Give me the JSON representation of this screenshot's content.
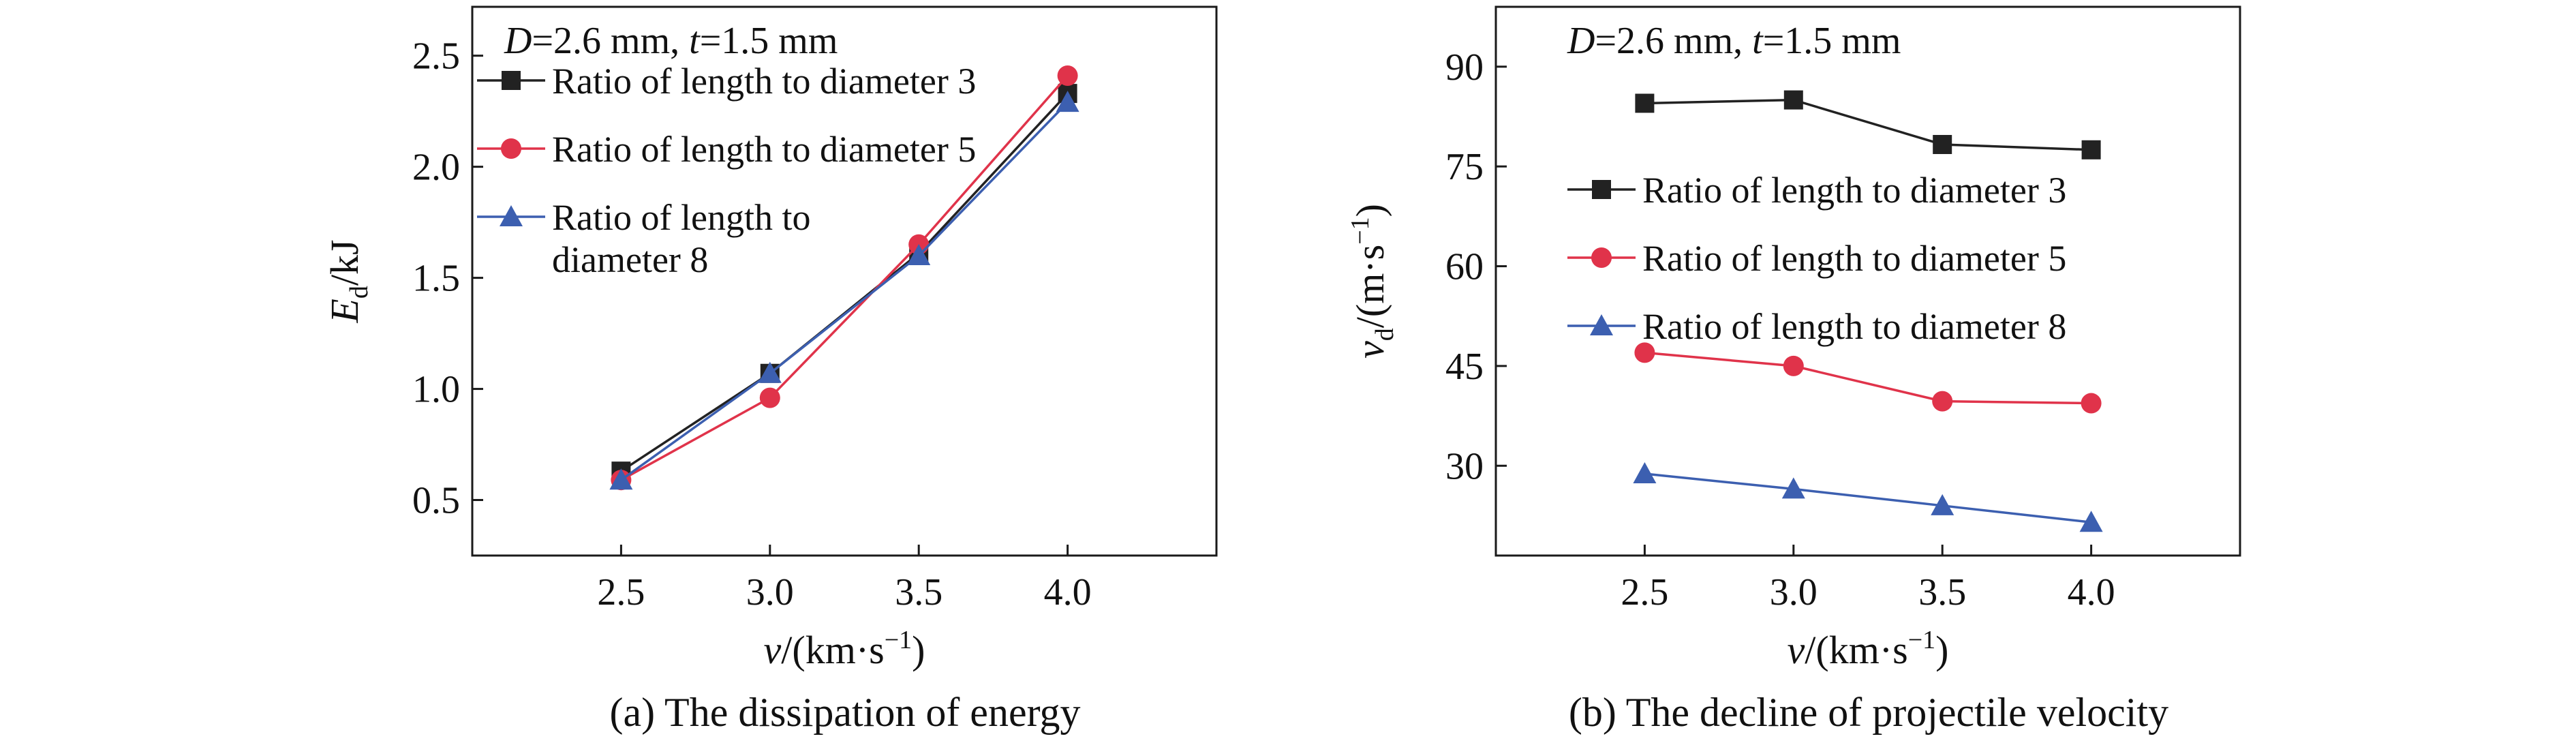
{
  "chart_data": [
    {
      "type": "line",
      "caption": "(a) The dissipation of energy",
      "annotation": {
        "D_sym": "D",
        "D_val": "=2.6 mm, ",
        "t_sym": "t",
        "t_val": "=1.5 mm"
      },
      "xlabel": {
        "sym": "v",
        "unit": "/(km·s",
        "exp": "−1",
        "close": ")"
      },
      "ylabel": {
        "sym": "E",
        "sub": "d",
        "unit": "/kJ"
      },
      "x": [
        2.5,
        3.0,
        3.5,
        4.0
      ],
      "x_ticks": [
        "2.5",
        "3.0",
        "3.5",
        "4.0"
      ],
      "xlim": [
        2.0,
        4.5
      ],
      "ylim": [
        0.25,
        2.72
      ],
      "y_ticks": [
        "0.5",
        "1.0",
        "1.5",
        "2.0",
        "2.5"
      ],
      "y_tick_values": [
        0.5,
        1.0,
        1.5,
        2.0,
        2.5
      ],
      "legend_position": "top-left",
      "series": [
        {
          "name": "Ratio of length to diameter 3",
          "legend_lines": [
            "Ratio of length to diameter 3"
          ],
          "color": "#222222",
          "marker": "square",
          "values": [
            0.63,
            1.07,
            1.61,
            2.33
          ]
        },
        {
          "name": "Ratio of length to diameter 5",
          "legend_lines": [
            "Ratio of length to diameter 5"
          ],
          "color": "#e0334a",
          "marker": "circle",
          "values": [
            0.59,
            0.96,
            1.65,
            2.41
          ]
        },
        {
          "name": "Ratio of length to diameter 8",
          "legend_lines": [
            "Ratio of length to",
            "diameter 8"
          ],
          "color": "#3c5fb0",
          "marker": "triangle",
          "values": [
            0.59,
            1.07,
            1.6,
            2.29
          ]
        }
      ]
    },
    {
      "type": "line",
      "caption": "(b) The decline of projectile velocity",
      "annotation": {
        "D_sym": "D",
        "D_val": "=2.6 mm, ",
        "t_sym": "t",
        "t_val": "=1.5 mm"
      },
      "xlabel": {
        "sym": "v",
        "unit": "/(km·s",
        "exp": "−1",
        "close": ")"
      },
      "ylabel": {
        "sym": "v",
        "sub": "d",
        "unit": "/(m·s",
        "exp": "−1",
        "close": ")"
      },
      "x": [
        2.5,
        3.0,
        3.5,
        4.0
      ],
      "x_ticks": [
        "2.5",
        "3.0",
        "3.5",
        "4.0"
      ],
      "xlim": [
        2.0,
        4.5
      ],
      "ylim": [
        16.5,
        99
      ],
      "y_ticks": [
        "30",
        "45",
        "60",
        "75",
        "90"
      ],
      "y_tick_values": [
        30,
        45,
        60,
        75,
        90
      ],
      "legend_position": "middle-left",
      "series": [
        {
          "name": "Ratio of length to diameter 3",
          "legend_lines": [
            "Ratio of length to diameter 3"
          ],
          "color": "#222222",
          "marker": "square",
          "values": [
            84.5,
            85.0,
            78.3,
            77.5
          ]
        },
        {
          "name": "Ratio of length to diameter 5",
          "legend_lines": [
            "Ratio of length to diameter 5"
          ],
          "color": "#e0334a",
          "marker": "circle",
          "values": [
            47.0,
            45.0,
            39.7,
            39.4
          ]
        },
        {
          "name": "Ratio of length to diameter 8",
          "legend_lines": [
            "Ratio of length to diameter 8"
          ],
          "color": "#3c5fb0",
          "marker": "triangle",
          "values": [
            28.8,
            26.5,
            24.0,
            21.5
          ]
        }
      ]
    }
  ]
}
